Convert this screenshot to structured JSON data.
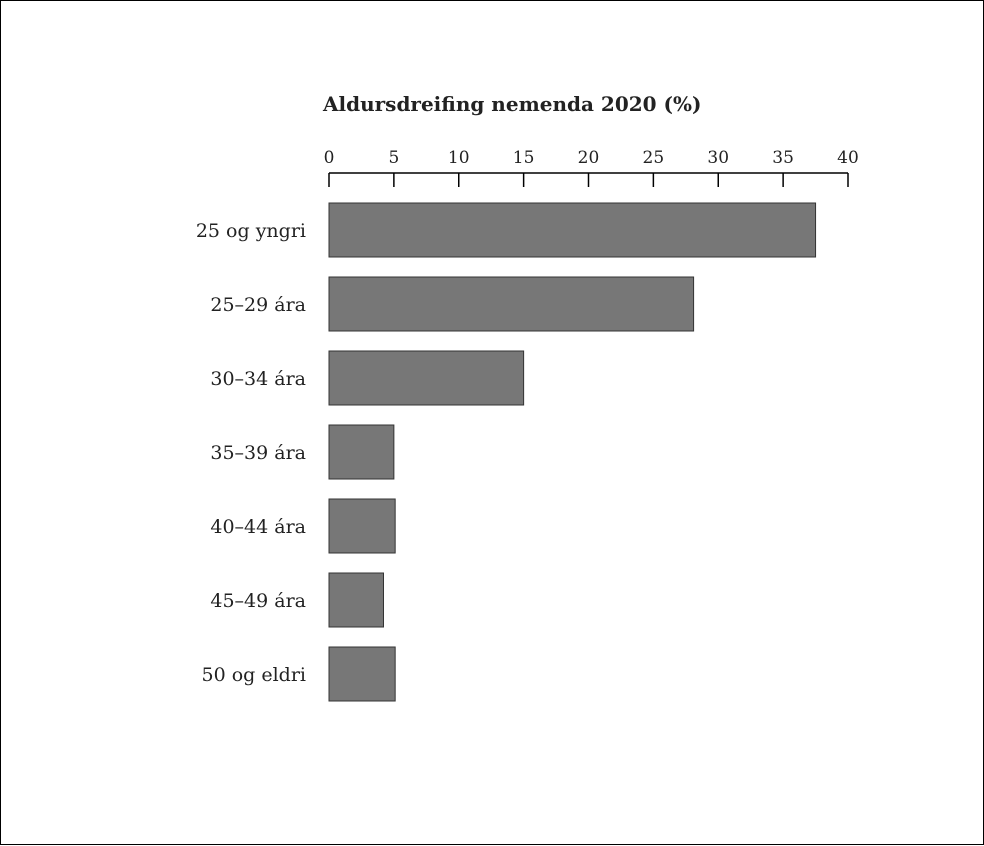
{
  "chart_data": {
    "type": "bar",
    "orientation": "horizontal",
    "title": "Aldursdreifing nemenda 2020 (%)",
    "xlabel": "",
    "ylabel": "",
    "categories": [
      "25 og yngri",
      "25–29 ára",
      "30–34 ára",
      "35–39 ára",
      "40–44 ára",
      "45–49 ára",
      "50 og eldri"
    ],
    "values": [
      37.5,
      28.1,
      15.0,
      5.0,
      5.1,
      4.2,
      5.1
    ],
    "xlim": [
      0,
      40
    ],
    "xticks": [
      0,
      5,
      10,
      15,
      20,
      25,
      30,
      35,
      40
    ],
    "xtick_labels": [
      "0",
      "5",
      "10",
      "15",
      "20",
      "25",
      "30",
      "35",
      "40"
    ],
    "axis_position": "top",
    "grid": false,
    "legend": "none",
    "colors": {
      "bar_fill": "#777777",
      "bar_stroke": "#333333",
      "axis": "#000000",
      "text": "#222222"
    }
  }
}
